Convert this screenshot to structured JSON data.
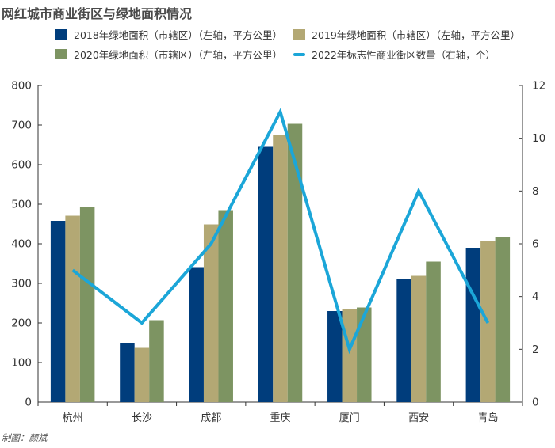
{
  "title": "网红城市商业街区与绿地面积情况",
  "credit": "制图：颜斌",
  "colors": {
    "s2018": "#003d7c",
    "s2019": "#b3a874",
    "s2020": "#7d9462",
    "line": "#1ba6d8",
    "axis": "#333333",
    "text": "#333333"
  },
  "legend": [
    {
      "label": "2018年绿地面积（市辖区）（左轴，平方公里）",
      "kind": "bar",
      "color": "#003d7c"
    },
    {
      "label": "2019年绿地面积（市辖区）（左轴，平方公里）",
      "kind": "bar",
      "color": "#b3a874"
    },
    {
      "label": "2020年绿地面积（市辖区）（左轴，平方公里）",
      "kind": "bar",
      "color": "#7d9462"
    },
    {
      "label": "2022年标志性商业街区数量（右轴，个）",
      "kind": "line",
      "color": "#1ba6d8"
    }
  ],
  "chart_data": {
    "type": "bar",
    "categories": [
      "杭州",
      "长沙",
      "成都",
      "重庆",
      "厦门",
      "西安",
      "青岛"
    ],
    "series": [
      {
        "name": "2018年绿地面积（市辖区）（左轴，平方公里）",
        "type": "bar",
        "axis": "left",
        "values": [
          458,
          150,
          341,
          645,
          230,
          310,
          390
        ]
      },
      {
        "name": "2019年绿地面积（市辖区）（左轴，平方公里）",
        "type": "bar",
        "axis": "left",
        "values": [
          471,
          137,
          449,
          676,
          234,
          319,
          408
        ]
      },
      {
        "name": "2020年绿地面积（市辖区）（左轴，平方公里）",
        "type": "bar",
        "axis": "left",
        "values": [
          494,
          207,
          485,
          703,
          239,
          355,
          418
        ]
      },
      {
        "name": "2022年标志性商业街区数量（右轴，个）",
        "type": "line",
        "axis": "right",
        "values": [
          5,
          3,
          6,
          11,
          2,
          8,
          3
        ]
      }
    ],
    "ylim_left": [
      0,
      800
    ],
    "yticks_left": [
      "0",
      "100",
      "200",
      "300",
      "400",
      "500",
      "600",
      "700",
      "800"
    ],
    "ylim_right": [
      0,
      12
    ],
    "yticks_right": [
      "0",
      "2",
      "4",
      "6",
      "8",
      "10",
      "12"
    ],
    "grid": false,
    "legend_position": "top"
  }
}
